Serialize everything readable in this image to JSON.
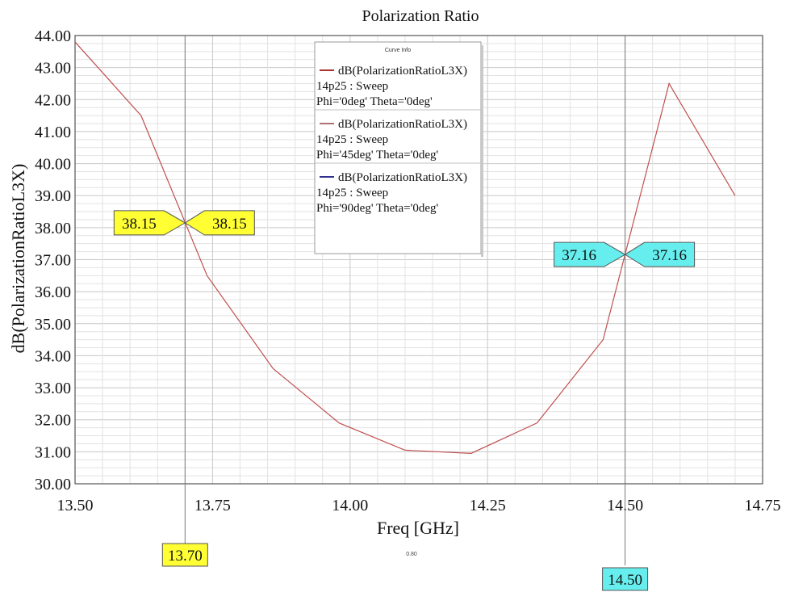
{
  "chart_data": {
    "type": "line",
    "title": "Polarization Ratio",
    "xlabel": "Freq [GHz]",
    "ylabel": "dB(PolarizationRatioL3X)",
    "xlim": [
      13.5,
      14.75
    ],
    "ylim": [
      30.0,
      44.0
    ],
    "xticks": [
      "13.50",
      "13.75",
      "14.00",
      "14.25",
      "14.50",
      "14.75"
    ],
    "yticks": [
      "30.00",
      "31.00",
      "32.00",
      "33.00",
      "34.00",
      "35.00",
      "36.00",
      "37.00",
      "38.00",
      "39.00",
      "40.00",
      "41.00",
      "42.00",
      "43.00",
      "44.00"
    ],
    "grid": true,
    "legend": {
      "title": "Curve Info",
      "placement": "top-center",
      "entries": [
        {
          "line1": "dB(PolarizationRatioL3X)",
          "line2": "14p25 : Sweep",
          "line3": "Phi='0deg' Theta='0deg'",
          "color": "#b03030"
        },
        {
          "line1": "dB(PolarizationRatioL3X)",
          "line2": "14p25 : Sweep",
          "line3": "Phi='45deg' Theta='0deg'",
          "color": "#b07070"
        },
        {
          "line1": "dB(PolarizationRatioL3X)",
          "line2": "14p25 : Sweep",
          "line3": "Phi='90deg' Theta='0deg'",
          "color": "#303090"
        }
      ]
    },
    "series": [
      {
        "color": "#c05050",
        "x": [
          13.5,
          13.62,
          13.74,
          13.86,
          13.98,
          14.1,
          14.22,
          14.34,
          14.46,
          14.58,
          14.7
        ],
        "values": [
          43.8,
          41.5,
          36.5,
          33.6,
          31.9,
          31.05,
          30.95,
          31.9,
          34.5,
          42.5,
          39.0
        ]
      }
    ],
    "markers": [
      {
        "x_label": "13.70",
        "left_value": "38.15",
        "right_value": "38.15",
        "x": 13.7,
        "y": 38.15,
        "color": "#ffff33"
      },
      {
        "x_label": "14.50",
        "left_value": "37.16",
        "right_value": "37.16",
        "x": 14.5,
        "y": 37.16,
        "color": "#66eeee"
      }
    ],
    "delta_label": "0.80"
  }
}
